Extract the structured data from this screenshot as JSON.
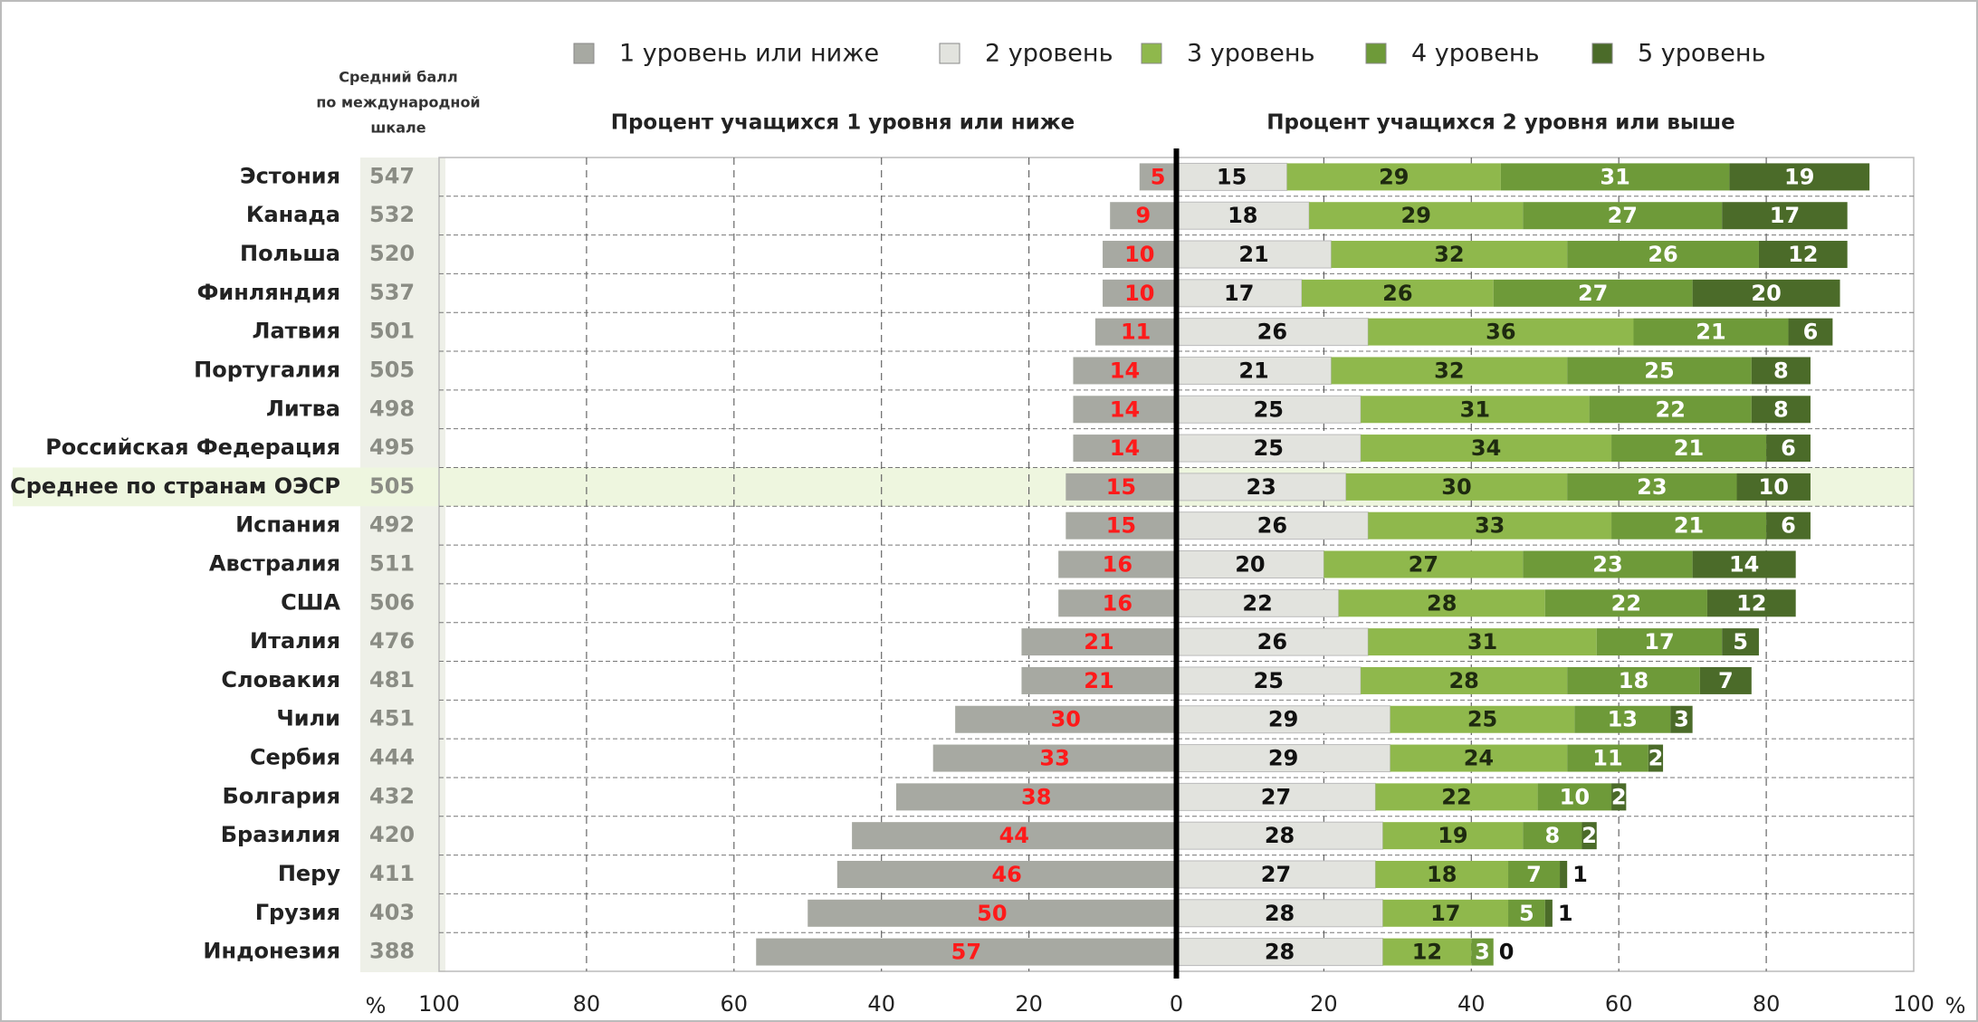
{
  "chart_data": {
    "type": "diverging_stacked_bar",
    "score_header": [
      "Средний балл",
      "по международной",
      "шкале"
    ],
    "left_title": "Процент учащихся 1 уровня или ниже",
    "right_title": "Процент учащихся 2 уровня или выше",
    "x_unit": "%",
    "categories": [
      "Эстония",
      "Канада",
      "Польша",
      "Финляндия",
      "Латвия",
      "Португалия",
      "Литва",
      "Российская Федерация",
      "Среднее по странам ОЭСР",
      "Испания",
      "Австралия",
      "США",
      "Италия",
      "Словакия",
      "Чили",
      "Сербия",
      "Болгария",
      "Бразилия",
      "Перу",
      "Грузия",
      "Индонезия"
    ],
    "scores": [
      547,
      532,
      520,
      537,
      501,
      505,
      498,
      495,
      505,
      492,
      511,
      506,
      476,
      481,
      451,
      444,
      432,
      420,
      411,
      403,
      388
    ],
    "highlight_index": 8,
    "series": [
      {
        "name": "1 уровень или ниже",
        "color": "#a7a9a2",
        "label_color": "#ff1a1a",
        "values": [
          -5,
          -9,
          -10,
          -10,
          -11,
          -14,
          -14,
          -14,
          -15,
          -15,
          -16,
          -16,
          -21,
          -21,
          -30,
          -33,
          -38,
          -44,
          -46,
          -50,
          -57
        ],
        "value_labels": [
          "5",
          "9",
          "10",
          "10",
          "11",
          "14",
          "14",
          "14",
          "15",
          "15",
          "16",
          "16",
          "21",
          "21",
          "30",
          "33",
          "38",
          "44",
          "46",
          "50",
          "57"
        ]
      },
      {
        "name": "2 уровень",
        "color": "#e2e3de",
        "label_color": "#111111",
        "values": [
          15,
          18,
          21,
          17,
          26,
          21,
          25,
          25,
          23,
          26,
          20,
          22,
          26,
          25,
          29,
          29,
          27,
          28,
          27,
          28,
          28
        ]
      },
      {
        "name": "3 уровень",
        "color": "#8fb84c",
        "label_color": "#1e2a10",
        "values": [
          29,
          29,
          32,
          26,
          36,
          32,
          31,
          34,
          30,
          33,
          27,
          28,
          31,
          28,
          25,
          24,
          22,
          19,
          18,
          17,
          12
        ]
      },
      {
        "name": "4 уровень",
        "color": "#6e9a39",
        "label_color": "#ffffff",
        "values": [
          31,
          27,
          26,
          27,
          21,
          25,
          22,
          21,
          23,
          21,
          23,
          22,
          17,
          18,
          13,
          11,
          10,
          8,
          7,
          5,
          3
        ]
      },
      {
        "name": "5 уровень",
        "color": "#4b6b29",
        "label_color": "#ffffff",
        "values": [
          19,
          17,
          12,
          20,
          6,
          8,
          8,
          6,
          10,
          6,
          14,
          12,
          5,
          7,
          3,
          2,
          2,
          2,
          1,
          1,
          0
        ]
      }
    ],
    "xlim": [
      -100,
      100
    ],
    "xticks": [
      {
        "value": -100,
        "label": "100"
      },
      {
        "value": -80,
        "label": "80"
      },
      {
        "value": -60,
        "label": "60"
      },
      {
        "value": -40,
        "label": "40"
      },
      {
        "value": -20,
        "label": "20"
      },
      0,
      20,
      40,
      60,
      80,
      100
    ],
    "grid": true
  }
}
